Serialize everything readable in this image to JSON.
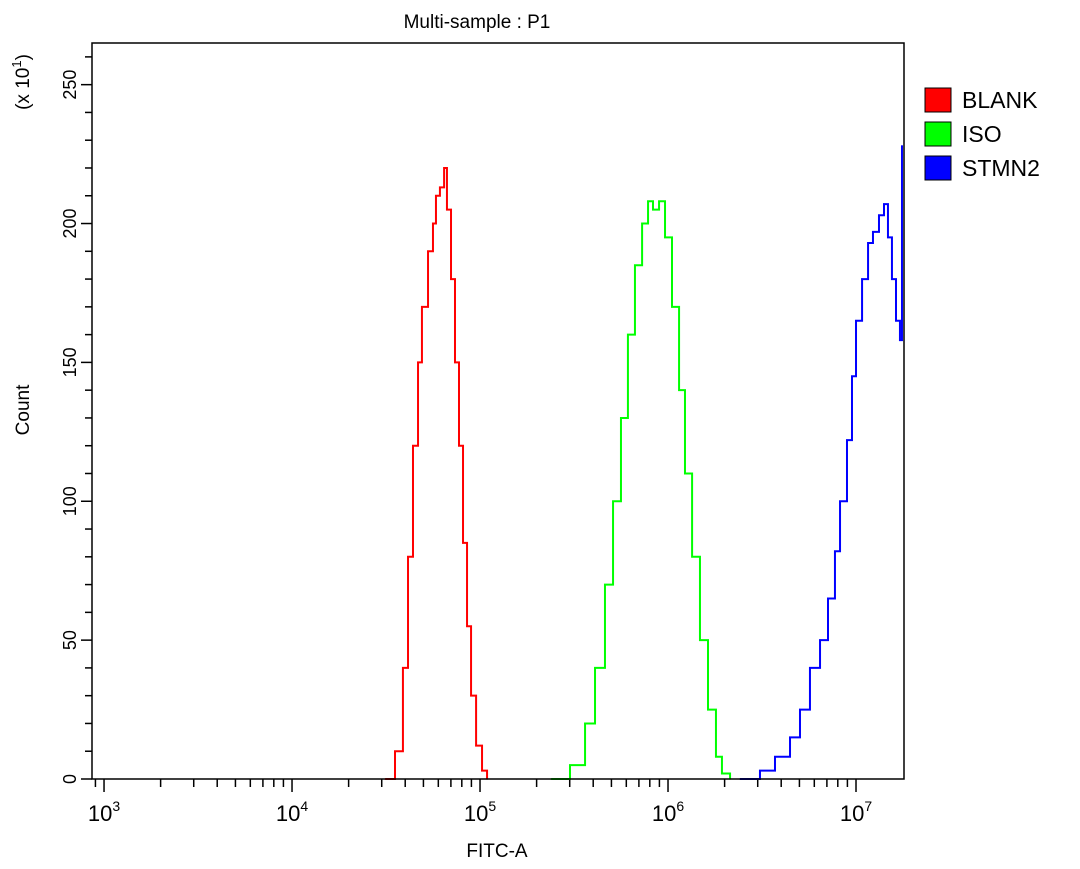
{
  "chart_data": {
    "type": "line",
    "title": "Multi-sample : P1",
    "xlabel": "FITC-A",
    "ylabel": "Count",
    "y_multiplier_label": "(x 10",
    "y_multiplier_exp": "1",
    "y_multiplier_close": ")",
    "x_scale": "log",
    "xlim": [
      863,
      18000000
    ],
    "ylim": [
      0,
      265
    ],
    "x_ticks": [
      {
        "base": "10",
        "exp": "3",
        "value": 1000
      },
      {
        "base": "10",
        "exp": "4",
        "value": 10000
      },
      {
        "base": "10",
        "exp": "5",
        "value": 100000
      },
      {
        "base": "10",
        "exp": "6",
        "value": 1000000
      },
      {
        "base": "10",
        "exp": "7",
        "value": 10000000
      }
    ],
    "y_ticks": [
      "0",
      "50",
      "100",
      "150",
      "200",
      "250"
    ],
    "grid": false,
    "legend_position": "right",
    "series": [
      {
        "name": "BLANK",
        "color": "#ff0000",
        "x": [
          31300,
          35300,
          38900,
          41400,
          44000,
          46800,
          49100,
          52900,
          56200,
          58300,
          61200,
          64400,
          66700,
          70100,
          73600,
          77300,
          81200,
          85300,
          89600,
          95300,
          102500,
          109000
        ],
        "y": [
          0,
          10,
          40,
          80,
          120,
          150,
          170,
          190,
          200,
          210,
          213,
          220,
          205,
          180,
          150,
          120,
          85,
          55,
          30,
          12,
          3,
          0
        ]
      },
      {
        "name": "ISO",
        "color": "#00ff00",
        "x": [
          239000,
          301000,
          362000,
          409000,
          462000,
          510000,
          562000,
          612000,
          667000,
          728000,
          783000,
          832000,
          896000,
          964000,
          1050000,
          1145000,
          1231000,
          1343000,
          1479000,
          1632000,
          1799000,
          1936000,
          2138000
        ],
        "y": [
          0,
          5,
          20,
          40,
          70,
          100,
          130,
          160,
          185,
          200,
          208,
          205,
          208,
          195,
          170,
          140,
          110,
          80,
          50,
          25,
          8,
          2,
          0
        ]
      },
      {
        "name": "STMN2",
        "color": "#0000ff",
        "x": [
          2415000,
          3084000,
          3707000,
          4456000,
          5035000,
          5689000,
          6436000,
          7096000,
          7727000,
          8222000,
          8954000,
          9520000,
          10000000,
          10770000,
          11590000,
          12310000,
          13250000,
          14090000,
          14790000,
          15530000,
          16320000,
          17130000,
          17560000
        ],
        "y": [
          0,
          3,
          8,
          15,
          25,
          40,
          50,
          65,
          82,
          100,
          122,
          145,
          165,
          180,
          193,
          197,
          203,
          207,
          195,
          180,
          165,
          158,
          228
        ]
      }
    ]
  }
}
